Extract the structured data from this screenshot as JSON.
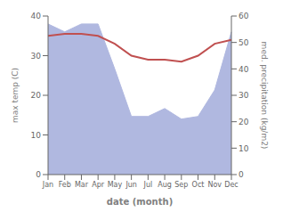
{
  "chart_data": {
    "type": "combo",
    "categories": [
      "Jan",
      "Feb",
      "Mar",
      "Apr",
      "May",
      "Jun",
      "Jul",
      "Aug",
      "Sep",
      "Oct",
      "Nov",
      "Dec"
    ],
    "series": [
      {
        "type": "area",
        "axis": "y2",
        "color": "#b0b8e0",
        "values": [
          57,
          54,
          57,
          57,
          40,
          22,
          22,
          25,
          21,
          22,
          32,
          54
        ]
      },
      {
        "type": "line",
        "color": "#c05050",
        "values": [
          35.0,
          35.5,
          35.5,
          35.0,
          33.0,
          30.0,
          29.0,
          29.0,
          28.5,
          30.0,
          33.0,
          34.0
        ]
      }
    ],
    "xlabel": "date (month)",
    "ylabel": "max temp (C)",
    "y2label": "med. precipitation (kg/m2)",
    "ylim": [
      0,
      40
    ],
    "yticks": [
      0,
      10,
      20,
      30,
      40
    ],
    "y2lim": [
      0,
      60
    ],
    "y2ticks": [
      0,
      10,
      20,
      30,
      40,
      50,
      60
    ],
    "grid": false
  }
}
